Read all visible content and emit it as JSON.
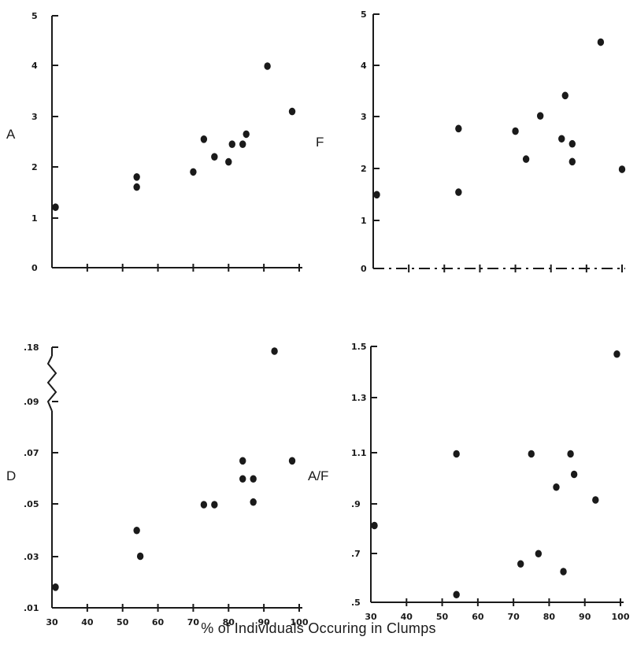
{
  "xlabel": "% of Individuals Occuring in Clumps",
  "chart_data": [
    {
      "type": "scatter",
      "ylabel": "A",
      "xlim": [
        30,
        100
      ],
      "ylim": [
        0,
        5
      ],
      "yticks": [
        "0",
        "1",
        "2",
        "3",
        "4",
        "5"
      ],
      "xticks": [],
      "points": [
        {
          "x": 31,
          "y": 1.2
        },
        {
          "x": 54,
          "y": 1.6
        },
        {
          "x": 54,
          "y": 1.8
        },
        {
          "x": 70,
          "y": 1.9
        },
        {
          "x": 73,
          "y": 2.55
        },
        {
          "x": 76,
          "y": 2.2
        },
        {
          "x": 80,
          "y": 2.1
        },
        {
          "x": 81,
          "y": 2.45
        },
        {
          "x": 84,
          "y": 2.45
        },
        {
          "x": 85,
          "y": 2.65
        },
        {
          "x": 91,
          "y": 4.0
        },
        {
          "x": 98,
          "y": 3.1
        }
      ]
    },
    {
      "type": "scatter",
      "ylabel": "F",
      "xlim": [
        30,
        100
      ],
      "ylim": [
        0,
        5
      ],
      "yticks": [
        "0",
        "1",
        "2",
        "3",
        "4",
        "5"
      ],
      "xticks": [],
      "points": [
        {
          "x": 31,
          "y": 1.45
        },
        {
          "x": 54,
          "y": 1.5
        },
        {
          "x": 54,
          "y": 2.75
        },
        {
          "x": 70,
          "y": 2.7
        },
        {
          "x": 73,
          "y": 2.15
        },
        {
          "x": 77,
          "y": 3.0
        },
        {
          "x": 83,
          "y": 2.55
        },
        {
          "x": 84,
          "y": 3.4
        },
        {
          "x": 86,
          "y": 2.45
        },
        {
          "x": 86,
          "y": 2.1
        },
        {
          "x": 94,
          "y": 4.45
        },
        {
          "x": 100,
          "y": 1.95
        }
      ]
    },
    {
      "type": "scatter",
      "ylabel": "D",
      "xlim": [
        30,
        100
      ],
      "ylim": [
        0.01,
        0.18
      ],
      "yticks": [
        ".01",
        ".03",
        ".05",
        ".07",
        ".09",
        ".18"
      ],
      "xticks": [
        "30",
        "40",
        "50",
        "60",
        "70",
        "80",
        "90",
        "100"
      ],
      "axis_break": true,
      "points": [
        {
          "x": 31,
          "y": 0.018
        },
        {
          "x": 54,
          "y": 0.04
        },
        {
          "x": 55,
          "y": 0.03
        },
        {
          "x": 73,
          "y": 0.05
        },
        {
          "x": 76,
          "y": 0.05
        },
        {
          "x": 84,
          "y": 0.067
        },
        {
          "x": 84,
          "y": 0.06
        },
        {
          "x": 87,
          "y": 0.06
        },
        {
          "x": 87,
          "y": 0.051
        },
        {
          "x": 98,
          "y": 0.067
        },
        {
          "x": 93,
          "y": 0.18
        }
      ]
    },
    {
      "type": "scatter",
      "ylabel": "A/F",
      "xlim": [
        30,
        100
      ],
      "ylim": [
        0.5,
        1.5
      ],
      "yticks": [
        ".5",
        ".7",
        ".9",
        "1.1",
        "1.3",
        "1.5"
      ],
      "xticks": [
        "30",
        "40",
        "50",
        "60",
        "70",
        "80",
        "90",
        "100"
      ],
      "points": [
        {
          "x": 31,
          "y": 0.8
        },
        {
          "x": 54,
          "y": 1.08
        },
        {
          "x": 54,
          "y": 0.53
        },
        {
          "x": 72,
          "y": 0.65
        },
        {
          "x": 75,
          "y": 1.08
        },
        {
          "x": 77,
          "y": 0.69
        },
        {
          "x": 82,
          "y": 0.95
        },
        {
          "x": 84,
          "y": 0.62
        },
        {
          "x": 86,
          "y": 1.08
        },
        {
          "x": 87,
          "y": 1.0
        },
        {
          "x": 93,
          "y": 0.9
        },
        {
          "x": 99,
          "y": 1.47
        }
      ]
    }
  ]
}
